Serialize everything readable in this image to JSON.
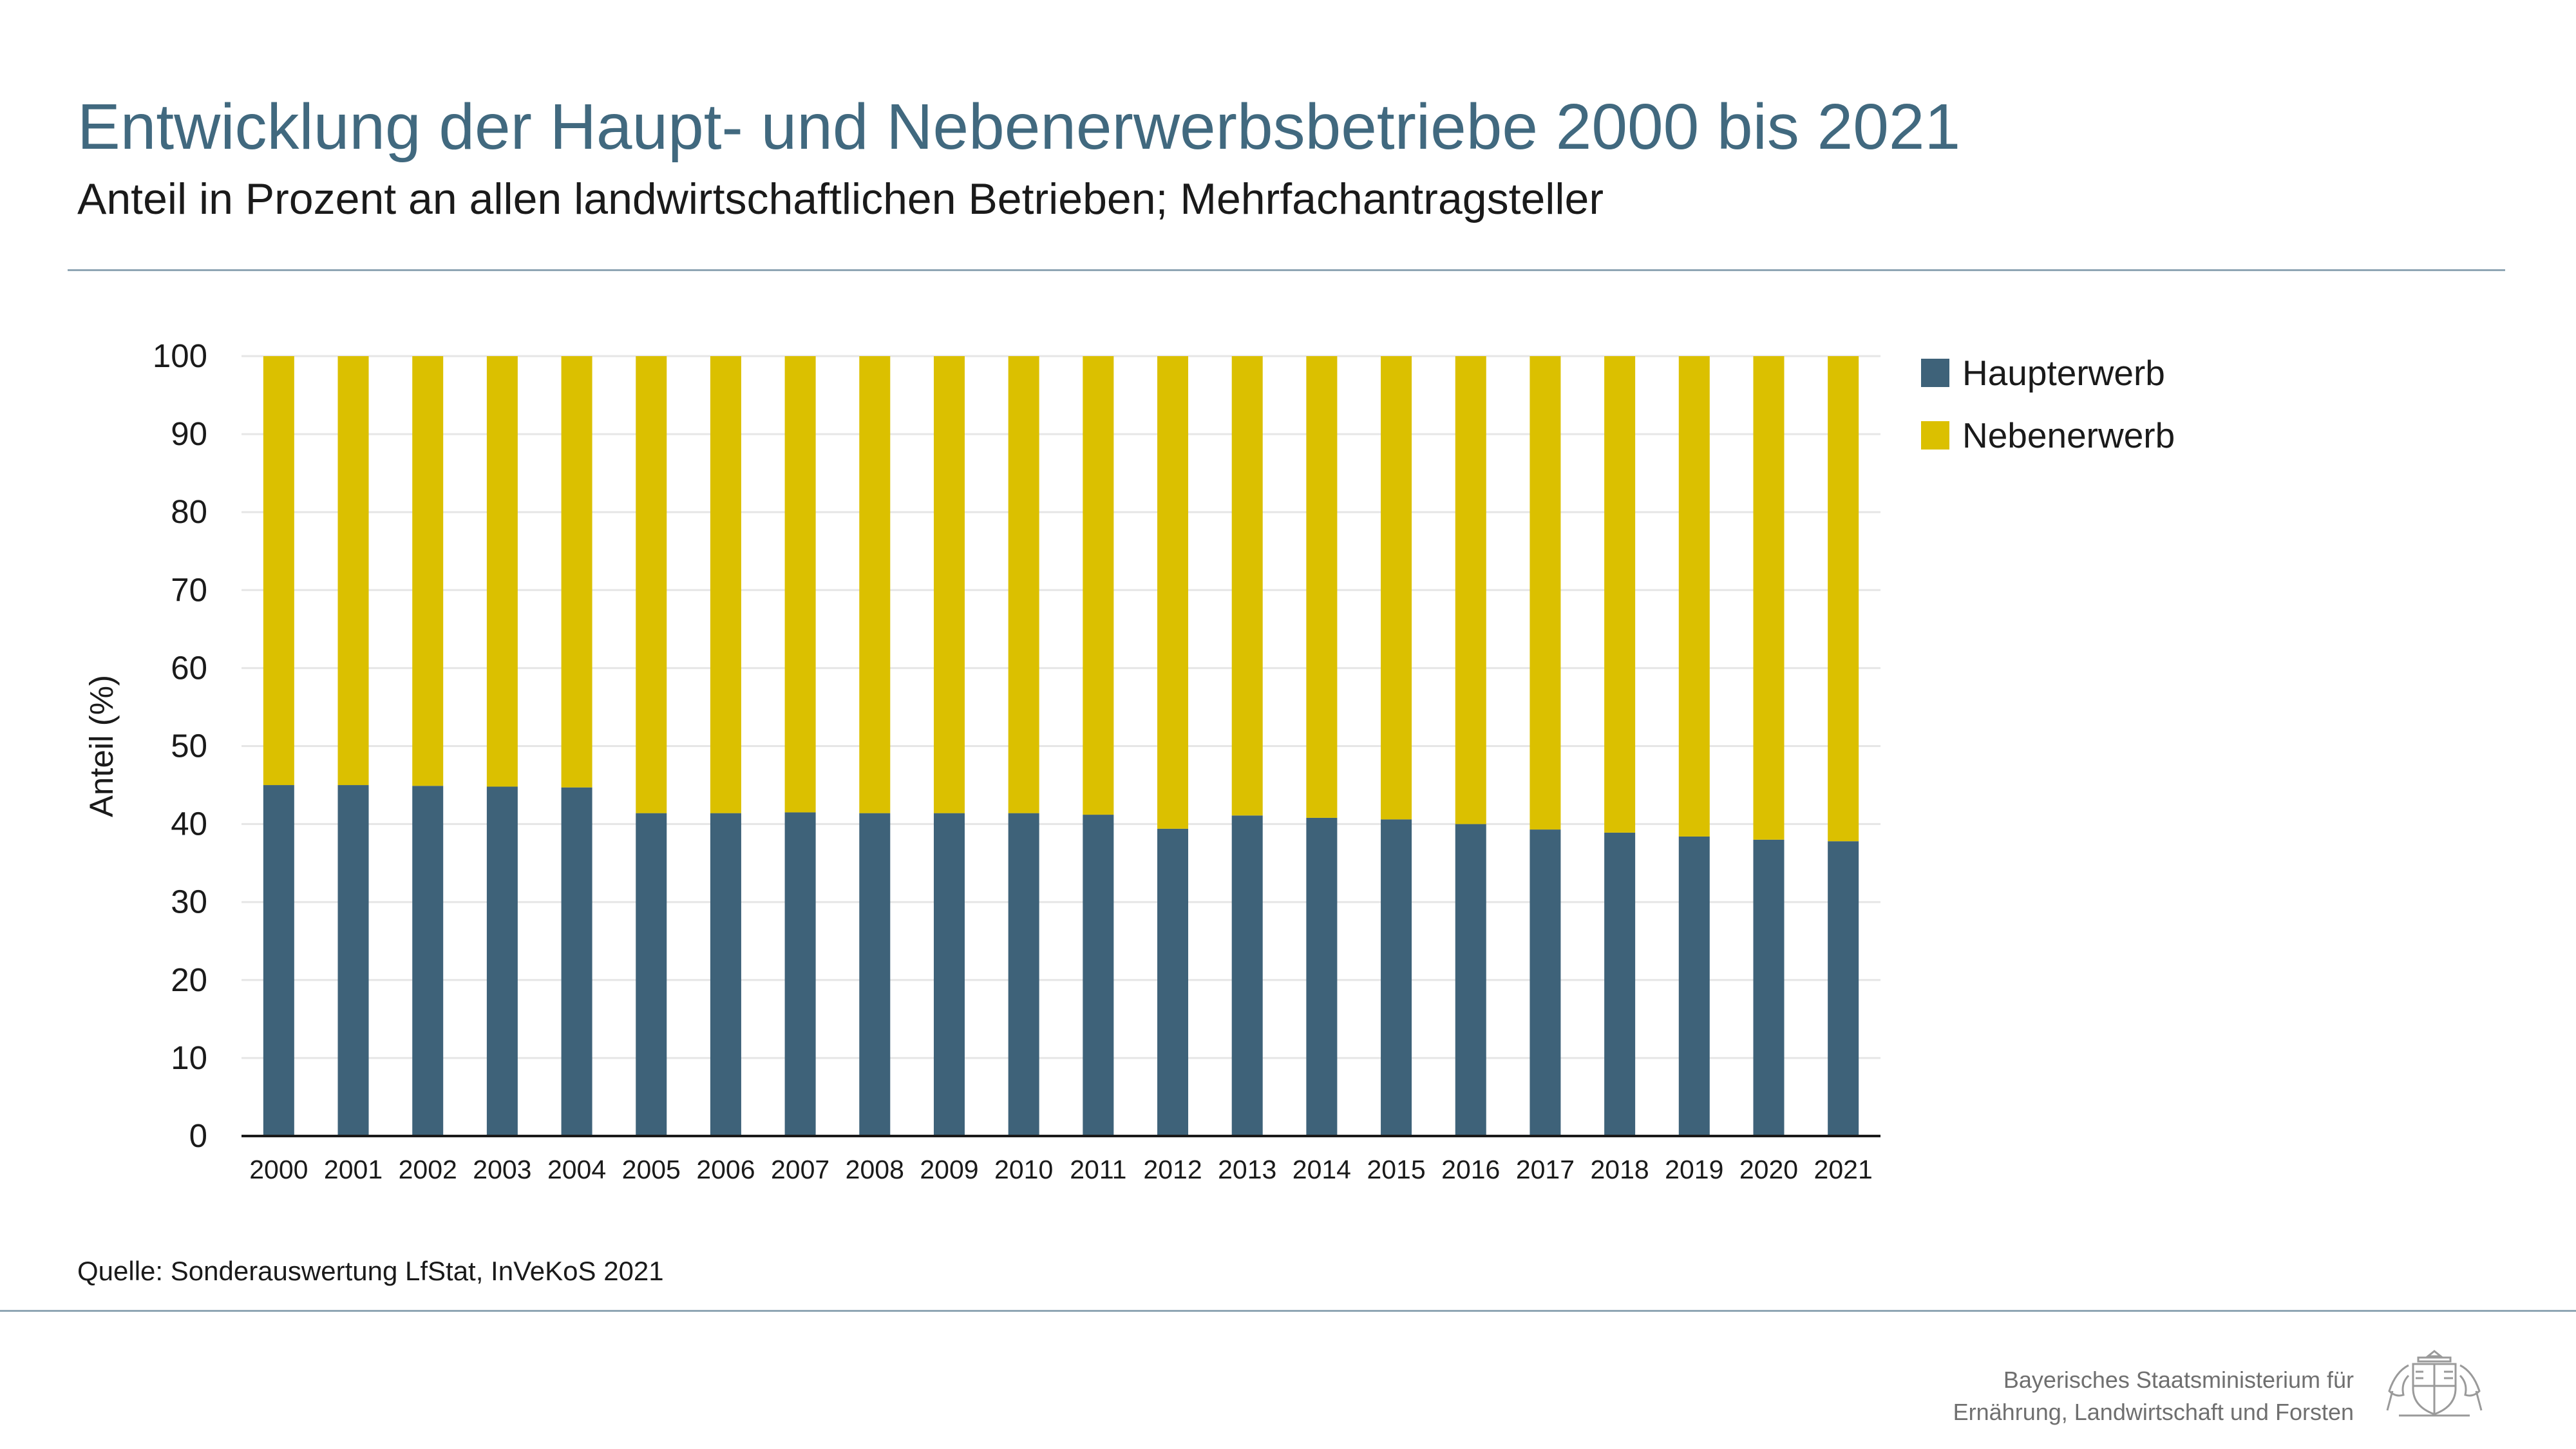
{
  "page": {
    "title": "Entwicklung der Haupt- und Nebenerwerbsbetriebe 2000 bis 2021",
    "subtitle": "Anteil in Prozent an allen landwirtschaftlichen Betrieben; Mehrfachantragsteller",
    "source": "Quelle: Sonderauswertung LfStat, InVeKoS 2021",
    "ministry_line1": "Bayerisches Staatsministerium für",
    "ministry_line2": "Ernährung, Landwirtschaft und Forsten"
  },
  "chart_data": {
    "type": "bar",
    "stacked": true,
    "ylabel": "Anteil (%)",
    "ylim": [
      0,
      100
    ],
    "yticks": [
      0,
      10,
      20,
      30,
      40,
      50,
      60,
      70,
      80,
      90,
      100
    ],
    "grid": true,
    "legend_position": "top-right",
    "categories": [
      "2000",
      "2001",
      "2002",
      "2003",
      "2004",
      "2005",
      "2006",
      "2007",
      "2008",
      "2009",
      "2010",
      "2011",
      "2012",
      "2013",
      "2014",
      "2015",
      "2016",
      "2017",
      "2018",
      "2019",
      "2020",
      "2021"
    ],
    "series": [
      {
        "name": "Haupterwerb",
        "color": "#3e6279",
        "values": [
          45.0,
          45.0,
          44.9,
          44.8,
          44.7,
          41.4,
          41.4,
          41.5,
          41.4,
          41.4,
          41.4,
          41.2,
          39.4,
          41.1,
          40.8,
          40.6,
          40.0,
          39.3,
          38.9,
          38.4,
          38.0,
          37.8
        ]
      },
      {
        "name": "Nebenerwerb",
        "color": "#dbc000",
        "values": [
          55.0,
          55.0,
          55.1,
          55.2,
          55.3,
          58.6,
          58.6,
          58.5,
          58.6,
          58.6,
          58.6,
          58.8,
          60.6,
          58.9,
          59.2,
          59.4,
          60.0,
          60.7,
          61.1,
          61.6,
          62.0,
          62.2
        ]
      }
    ]
  }
}
